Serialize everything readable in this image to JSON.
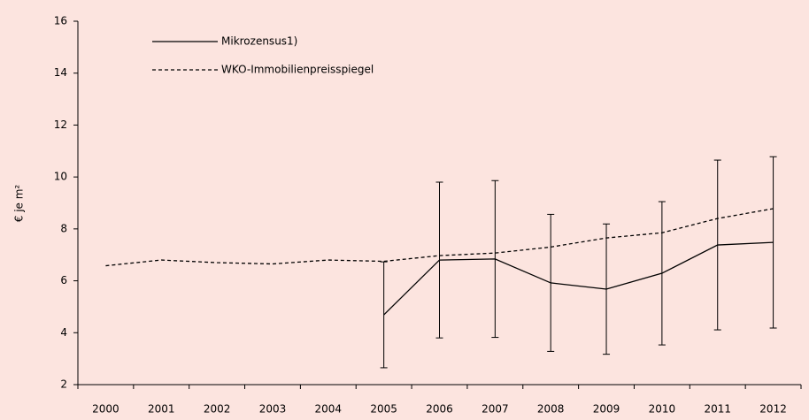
{
  "chart_data": {
    "type": "line",
    "y_label": "€ je m²",
    "categories": [
      "2000",
      "2001",
      "2002",
      "2003",
      "2004",
      "2005",
      "2006",
      "2007",
      "2008",
      "2009",
      "2010",
      "2011",
      "2012"
    ],
    "series": [
      {
        "name": "Mikrozensus1)",
        "color": "#000000",
        "dash": "solid",
        "values": [
          null,
          null,
          null,
          null,
          null,
          4.69,
          6.8,
          6.84,
          5.92,
          5.68,
          6.29,
          7.38,
          7.48
        ],
        "errors": [
          null,
          null,
          null,
          null,
          null,
          2.04,
          3.0,
          3.02,
          2.64,
          2.51,
          2.76,
          3.27,
          3.3
        ]
      },
      {
        "name": "WKO-Immobilienpreisspiegel",
        "color": "#000000",
        "dash": "dashed",
        "values": [
          6.58,
          6.8,
          6.7,
          6.65,
          6.8,
          6.75,
          6.97,
          7.07,
          7.3,
          7.65,
          7.85,
          8.4,
          8.78
        ]
      }
    ],
    "ylim": [
      2,
      16
    ],
    "yticks": [
      2,
      4,
      6,
      8,
      10,
      12,
      14,
      16
    ]
  }
}
